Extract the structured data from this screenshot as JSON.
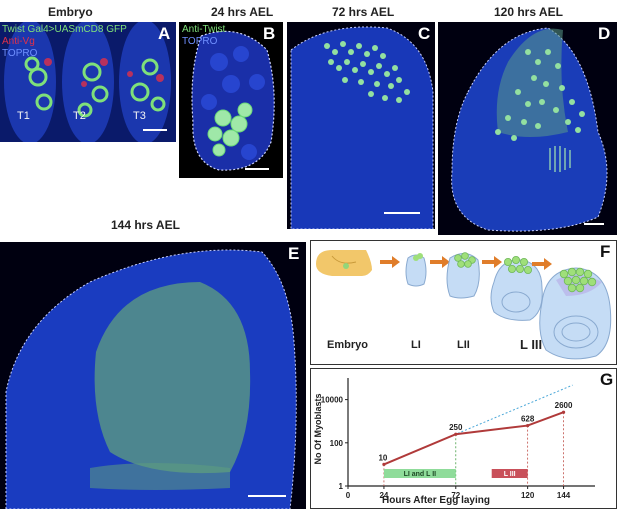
{
  "headers": {
    "embryo": "Embryo",
    "h24": "24 hrs AEL",
    "h72": "72 hrs AEL",
    "h120": "120 hrs AEL",
    "h144": "144 hrs AEL"
  },
  "panel_labels": [
    "A",
    "B",
    "C",
    "D",
    "E",
    "F",
    "G"
  ],
  "panel_a": {
    "stain_lines": [
      "Twist Gal4>UASmCD8 GFP",
      "Anti-Vg",
      "TOPRO"
    ],
    "segments": [
      "T1",
      "T2",
      "T3"
    ]
  },
  "panel_b": {
    "stain_lines": [
      "Anti-Twist",
      "TOPRO"
    ]
  },
  "panel_f": {
    "stages": [
      "Embryo",
      "LI",
      "LII",
      "L III"
    ]
  },
  "colors": {
    "gfp": "#7fe07a",
    "vg": "#e0304a",
    "topro": "#2a4fd0",
    "curve": "#b03a3a",
    "dotted": "#4aa7d8",
    "bar_li": "#8fdc9a",
    "bar_l3": "#c9505a"
  },
  "chart_data": {
    "type": "line",
    "xlabel": "Hours After Egg laying",
    "ylabel": "No Of Myoblasts",
    "x_ticks": [
      "0",
      "24",
      "72",
      "120",
      "144"
    ],
    "y_ticks": [
      "1",
      "100",
      "10000"
    ],
    "yscale": "log",
    "xlim": [
      0,
      165
    ],
    "ylim": [
      1,
      100000
    ],
    "series": [
      {
        "x": [
          24,
          72,
          120,
          144
        ],
        "y": [
          10,
          250,
          628,
          2600
        ]
      }
    ],
    "data_labels": [
      "10",
      "250",
      "628",
      "2600"
    ],
    "bars": [
      {
        "label": "LI and L II",
        "x0": 24,
        "x1": 72
      },
      {
        "label": "L III",
        "x0": 96,
        "x1": 120
      }
    ],
    "grid": false
  }
}
